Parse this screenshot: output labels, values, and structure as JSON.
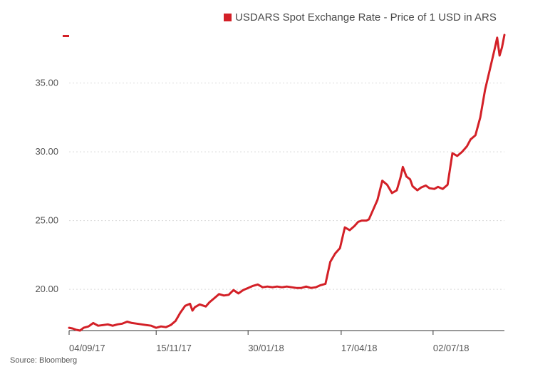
{
  "chart_data": {
    "type": "line",
    "legend": {
      "label": "USDARS Spot Exchange Rate - Price of 1 USD in ARS",
      "placement": "top-right"
    },
    "source": "Source: Bloomberg",
    "x_axis": {
      "tick_labels": [
        "04/09/17",
        "15/11/17",
        "30/01/18",
        "17/04/18",
        "02/07/18"
      ],
      "range": [
        "2017-09-04",
        "2018-08-30"
      ]
    },
    "y_axis": {
      "tick_labels": [
        "20.00",
        "25.00",
        "30.00",
        "35.00"
      ],
      "ticks": [
        20,
        25,
        30,
        35
      ],
      "range": [
        17.0,
        38.5
      ]
    },
    "grid": "horizontal-dotted",
    "colors": {
      "series": "#d32027",
      "axis": "#333333",
      "grid": "#d9d9d9",
      "text": "#555555"
    },
    "series": [
      {
        "name": "USDARS Spot Exchange Rate - Price of 1 USD in ARS",
        "x": [
          "2017-09-04",
          "2017-09-07",
          "2017-09-10",
          "2017-09-13",
          "2017-09-16",
          "2017-09-20",
          "2017-09-24",
          "2017-09-28",
          "2017-10-02",
          "2017-10-06",
          "2017-10-10",
          "2017-10-14",
          "2017-10-18",
          "2017-10-22",
          "2017-10-26",
          "2017-10-30",
          "2017-11-03",
          "2017-11-07",
          "2017-11-11",
          "2017-11-15",
          "2017-11-19",
          "2017-11-23",
          "2017-11-27",
          "2017-12-01",
          "2017-12-05",
          "2017-12-09",
          "2017-12-13",
          "2017-12-15",
          "2017-12-17",
          "2017-12-21",
          "2017-12-26",
          "2017-12-29",
          "2018-01-02",
          "2018-01-06",
          "2018-01-10",
          "2018-01-14",
          "2018-01-18",
          "2018-01-22",
          "2018-01-26",
          "2018-01-30",
          "2018-02-03",
          "2018-02-07",
          "2018-02-11",
          "2018-02-15",
          "2018-02-19",
          "2018-02-23",
          "2018-02-27",
          "2018-03-03",
          "2018-03-07",
          "2018-03-11",
          "2018-03-15",
          "2018-03-19",
          "2018-03-23",
          "2018-03-27",
          "2018-03-31",
          "2018-04-04",
          "2018-04-08",
          "2018-04-12",
          "2018-04-16",
          "2018-04-20",
          "2018-04-24",
          "2018-04-28",
          "2018-05-01",
          "2018-05-04",
          "2018-05-08",
          "2018-05-10",
          "2018-05-14",
          "2018-05-17",
          "2018-05-21",
          "2018-05-25",
          "2018-05-29",
          "2018-06-02",
          "2018-06-05",
          "2018-06-07",
          "2018-06-10",
          "2018-06-13",
          "2018-06-15",
          "2018-06-19",
          "2018-06-22",
          "2018-06-26",
          "2018-06-29",
          "2018-07-03",
          "2018-07-06",
          "2018-07-10",
          "2018-07-14",
          "2018-07-18",
          "2018-07-22",
          "2018-07-26",
          "2018-07-30",
          "2018-08-02",
          "2018-08-06",
          "2018-08-10",
          "2018-08-14",
          "2018-08-18",
          "2018-08-22",
          "2018-08-24",
          "2018-08-26",
          "2018-08-28",
          "2018-08-30"
        ],
        "values": [
          17.2,
          17.15,
          17.05,
          17.0,
          17.2,
          17.3,
          17.55,
          17.35,
          17.4,
          17.45,
          17.35,
          17.45,
          17.5,
          17.65,
          17.55,
          17.5,
          17.45,
          17.4,
          17.35,
          17.2,
          17.3,
          17.25,
          17.4,
          17.7,
          18.3,
          18.8,
          18.95,
          18.45,
          18.7,
          18.9,
          18.75,
          19.05,
          19.35,
          19.65,
          19.55,
          19.6,
          19.95,
          19.7,
          19.95,
          20.1,
          20.25,
          20.35,
          20.15,
          20.2,
          20.15,
          20.2,
          20.15,
          20.2,
          20.15,
          20.1,
          20.1,
          20.2,
          20.1,
          20.15,
          20.3,
          20.4,
          22.0,
          22.6,
          23.0,
          24.5,
          24.3,
          24.6,
          24.9,
          25.0,
          25.0,
          25.1,
          25.9,
          26.5,
          27.9,
          27.6,
          27.0,
          27.2,
          28.1,
          28.9,
          28.2,
          28.0,
          27.5,
          27.2,
          27.4,
          27.55,
          27.35,
          27.3,
          27.45,
          27.3,
          27.6,
          29.9,
          29.7,
          30.0,
          30.4,
          30.9,
          31.2,
          32.5,
          34.5,
          36.0,
          37.5,
          38.3,
          37.0,
          37.6,
          38.5
        ]
      }
    ]
  }
}
